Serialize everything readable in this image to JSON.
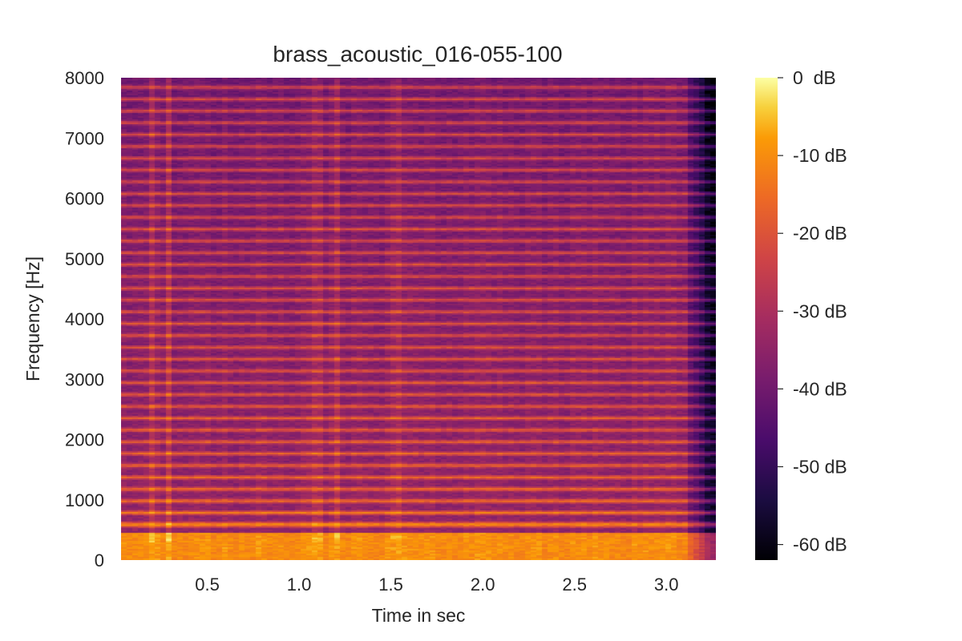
{
  "chart_data": {
    "type": "heatmap",
    "title": "brass_acoustic_016-055-100",
    "xlabel": "Time in sec",
    "ylabel": "Frequency [Hz]",
    "xlim": [
      0.03,
      3.27
    ],
    "ylim": [
      0,
      8000
    ],
    "x_ticks": [
      0.5,
      1.0,
      1.5,
      2.0,
      2.5,
      3.0
    ],
    "x_tick_labels": [
      "0.5",
      "1.0",
      "1.5",
      "2.0",
      "2.5",
      "3.0"
    ],
    "y_ticks": [
      0,
      1000,
      2000,
      3000,
      4000,
      5000,
      6000,
      7000,
      8000
    ],
    "y_tick_labels": [
      "0",
      "1000",
      "2000",
      "3000",
      "4000",
      "5000",
      "6000",
      "7000",
      "8000"
    ],
    "colormap": "inferno",
    "colorbar": {
      "range": [
        -62,
        0
      ],
      "ticks": [
        0,
        -10,
        -20,
        -30,
        -40,
        -50,
        -60
      ],
      "tick_labels": [
        "0  dB",
        "-10 dB",
        "-20 dB",
        "-30 dB",
        "-40 dB",
        "-50 dB",
        "-60 dB"
      ]
    },
    "fundamental_hz": 196,
    "note_onset_sec": 0.03,
    "note_release_sec": 3.12,
    "broadband_transients_sec": [
      0.2,
      0.29,
      1.1,
      1.2,
      1.53
    ],
    "grid": false
  }
}
